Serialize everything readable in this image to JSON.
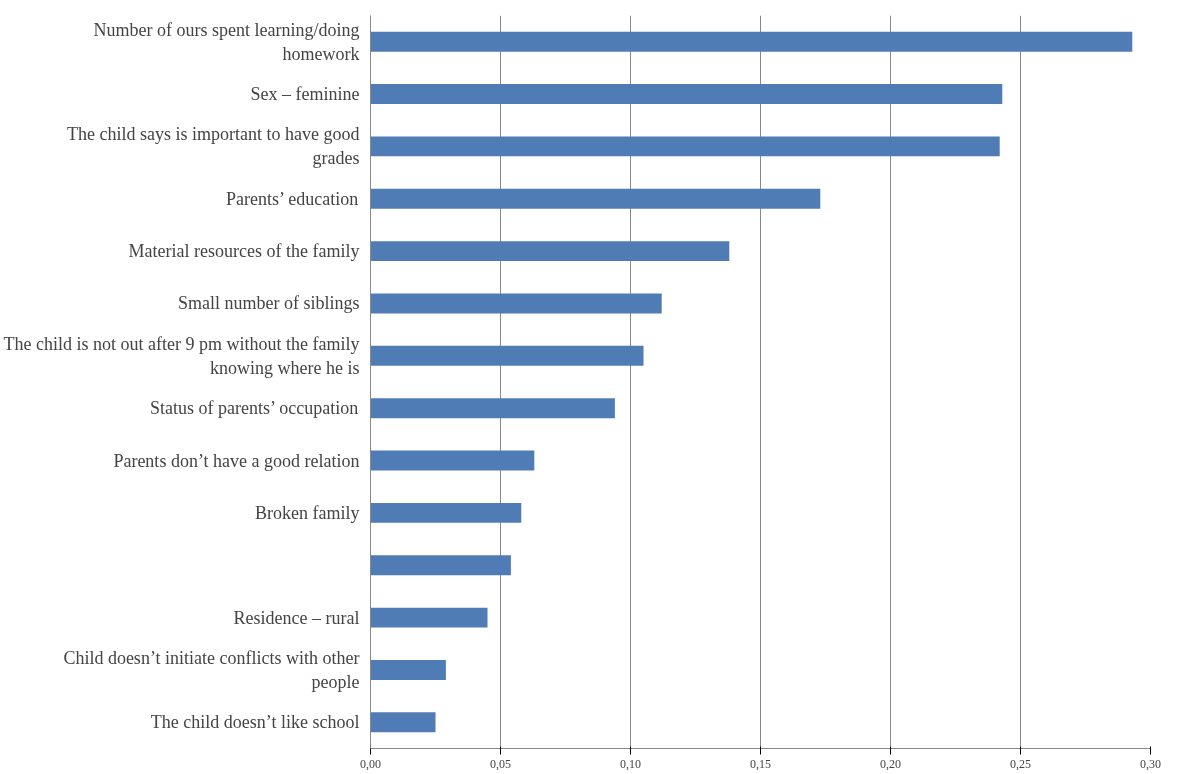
{
  "chart_data": {
    "type": "bar",
    "orientation": "horizontal",
    "categories": [
      "Number of ours spent learning/doing\nhomework",
      "Sex – feminine",
      "The child says is important to have good\ngrades",
      "Parents’ education",
      "Material resources of the family",
      "Small number of siblings",
      "The child is not out after 9 pm without the family\nknowing where he is",
      "Status of parents’ occupation",
      "Parents don’t have a good relation",
      "Broken family",
      null,
      "Residence – rural",
      "Child doesn’t initiate conflicts with other\npeople",
      "The child doesn’t like school"
    ],
    "values": [
      0.293,
      0.243,
      0.242,
      0.173,
      0.138,
      0.112,
      0.105,
      0.094,
      0.063,
      0.058,
      0.054,
      0.045,
      0.029,
      0.025
    ],
    "color": "#4f7cb5",
    "xlim": [
      0,
      0.3
    ],
    "xticks": [
      {
        "value": 0,
        "label": "0,00"
      },
      {
        "value": 0.05,
        "label": "0,05"
      },
      {
        "value": 0.1,
        "label": "0,10"
      },
      {
        "value": 0.15,
        "label": "0,15"
      },
      {
        "value": 0.2,
        "label": "0,20"
      },
      {
        "value": 0.25,
        "label": "0,25"
      },
      {
        "value": 0.3,
        "label": "0,30"
      }
    ],
    "grid": "x"
  }
}
